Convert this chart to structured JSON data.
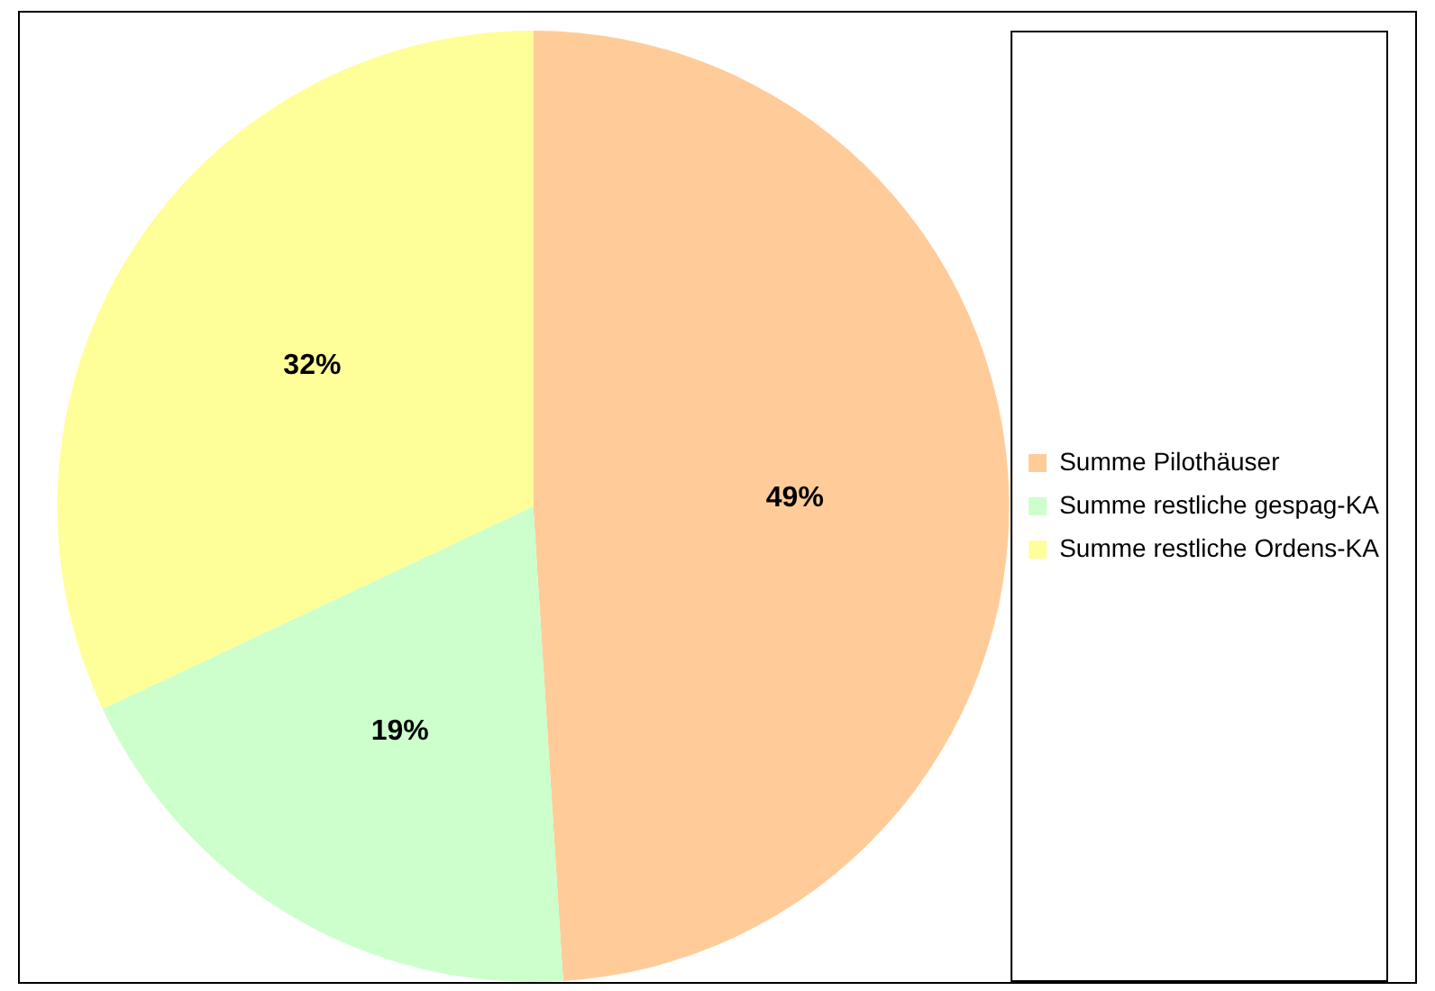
{
  "chart_data": {
    "type": "pie",
    "categories": [
      "Summe Pilothäuser",
      "Summe restliche gespag-KA",
      "Summe restliche Ordens-KA"
    ],
    "values": [
      49,
      19,
      32
    ],
    "value_labels": [
      "49%",
      "19%",
      "32%"
    ],
    "colors": [
      "#ffcc99",
      "#ccffcc",
      "#ffff99"
    ],
    "legend": "right"
  }
}
